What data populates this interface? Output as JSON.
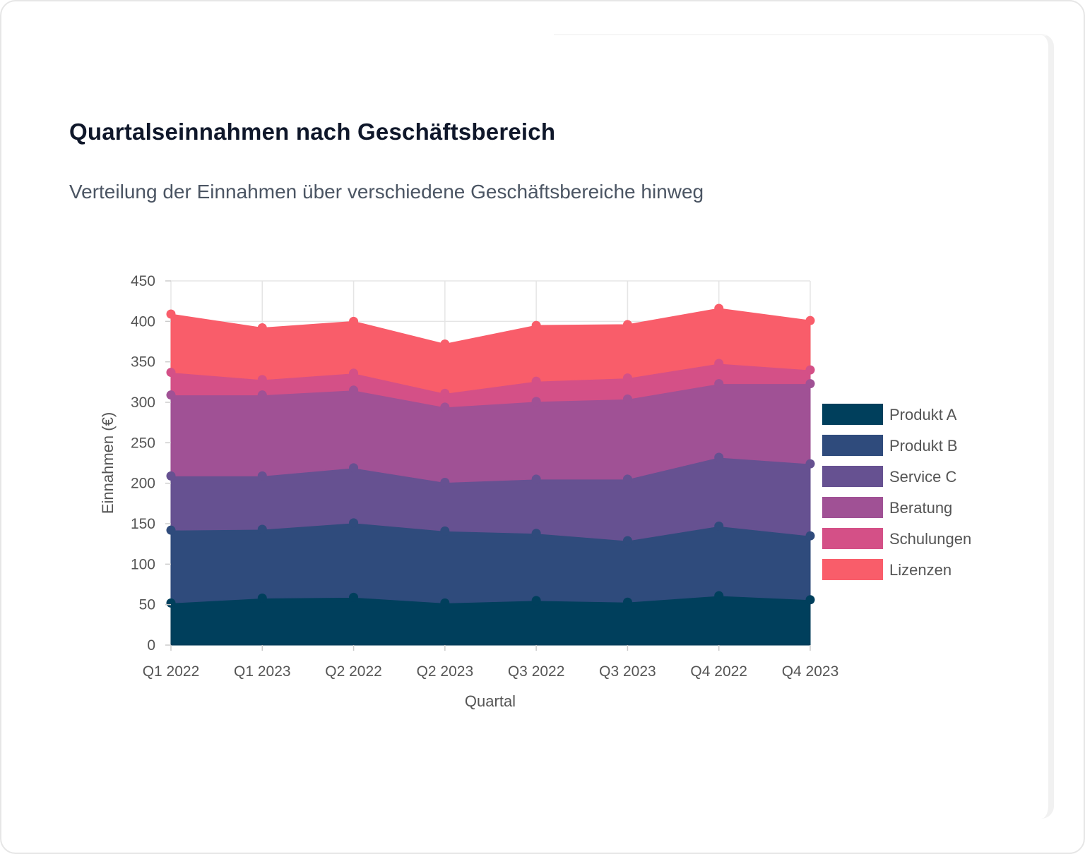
{
  "header": {
    "title": "Quartalseinnahmen nach Geschäftsbereich",
    "subtitle": "Verteilung der Einnahmen über verschiedene Geschäftsbereiche hinweg"
  },
  "chart_data": {
    "type": "area",
    "stacked": true,
    "categories": [
      "Q1 2022",
      "Q1 2023",
      "Q2 2022",
      "Q2 2023",
      "Q3 2022",
      "Q3 2023",
      "Q4 2022",
      "Q4 2023"
    ],
    "xlabel": "Quartal",
    "ylabel": "Einnahmen (€)",
    "ylim": [
      0,
      450
    ],
    "yticks": [
      0,
      50,
      100,
      150,
      200,
      250,
      300,
      350,
      400,
      450
    ],
    "grid": true,
    "legend_position": "right",
    "series": [
      {
        "name": "Produkt A",
        "color": "#003f5c",
        "values": [
          52,
          58,
          59,
          52,
          55,
          53,
          61,
          56
        ]
      },
      {
        "name": "Produkt B",
        "color": "#2f4b7c",
        "values": [
          90,
          85,
          92,
          89,
          83,
          76,
          86,
          79
        ]
      },
      {
        "name": "Service C",
        "color": "#665191",
        "values": [
          67,
          66,
          68,
          60,
          67,
          76,
          85,
          89
        ]
      },
      {
        "name": "Beratung",
        "color": "#a05195",
        "values": [
          100,
          100,
          96,
          93,
          96,
          99,
          91,
          99
        ]
      },
      {
        "name": "Schulungen",
        "color": "#d45087",
        "values": [
          28,
          19,
          21,
          17,
          25,
          26,
          25,
          17
        ]
      },
      {
        "name": "Lizenzen",
        "color": "#f95d6a",
        "values": [
          72,
          64,
          64,
          61,
          69,
          66,
          68,
          61
        ]
      }
    ]
  }
}
